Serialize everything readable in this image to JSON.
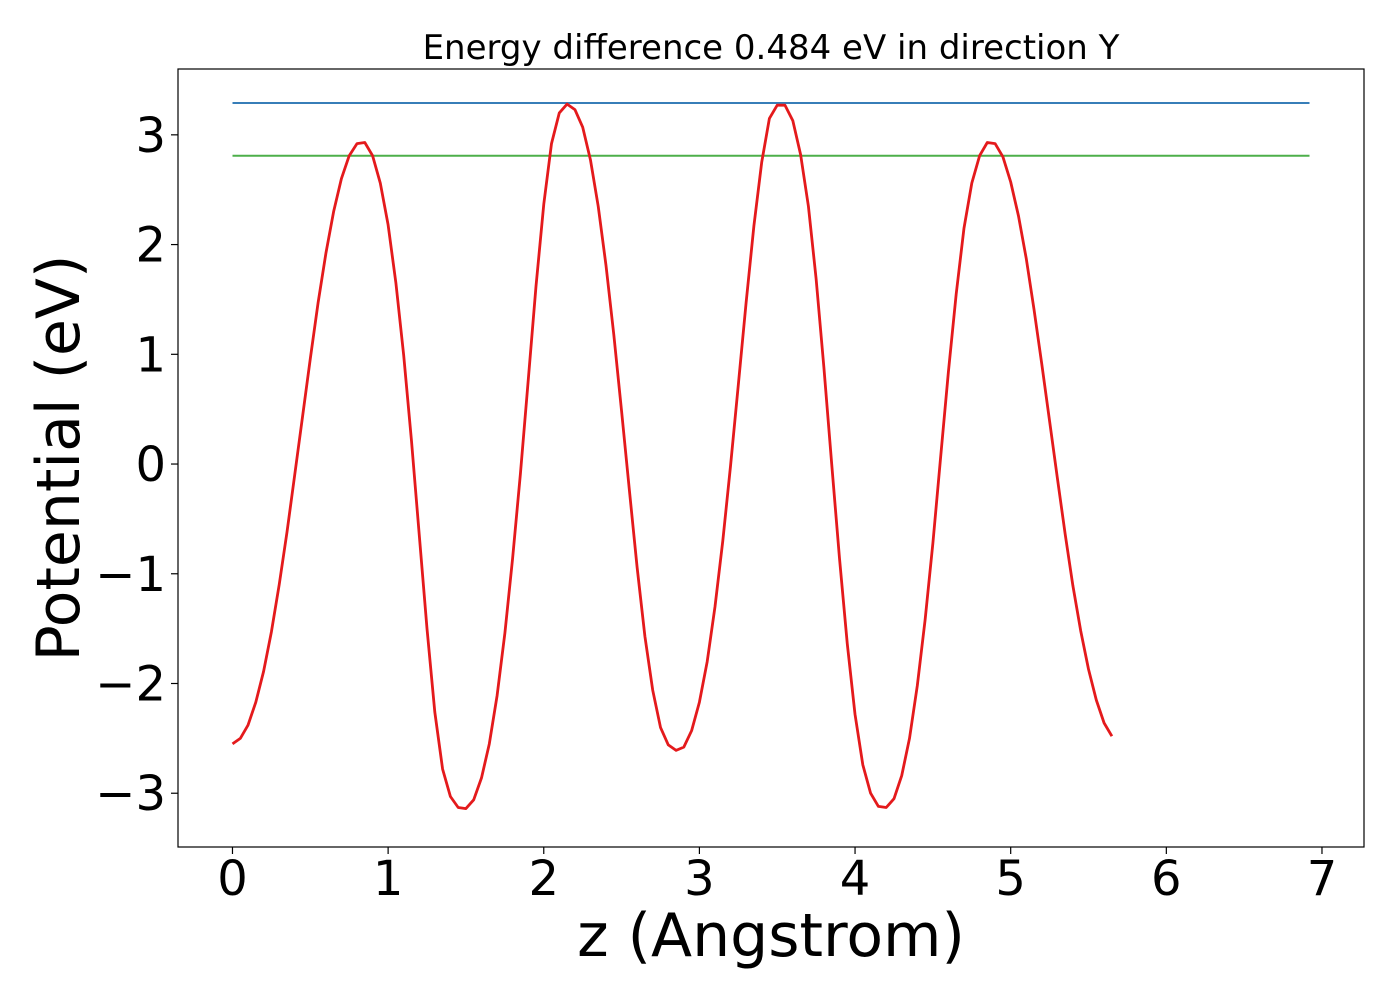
{
  "chart_data": {
    "type": "line",
    "title": "Energy difference 0.484 eV in direction Y",
    "xlabel": "z (Angstrom)",
    "ylabel": "Potential (eV)",
    "xlim": [
      -0.35,
      7.27
    ],
    "ylim": [
      -3.49,
      3.6
    ],
    "grid": false,
    "x_ticks": [
      "0",
      "1",
      "2",
      "3",
      "4",
      "5",
      "6",
      "7"
    ],
    "y_ticks": [
      "−3",
      "−2",
      "−1",
      "0",
      "1",
      "2",
      "3"
    ],
    "potential_curve": {
      "color": "#e41a1c",
      "x_start": 0,
      "x_step": 0.05,
      "y": [
        -2.55,
        -2.5,
        -2.38,
        -2.17,
        -1.89,
        -1.53,
        -1.1,
        -0.62,
        -0.1,
        0.43,
        0.96,
        1.47,
        1.92,
        2.3,
        2.6,
        2.81,
        2.92,
        2.93,
        2.81,
        2.56,
        2.18,
        1.65,
        0.99,
        0.21,
        -0.64,
        -1.5,
        -2.26,
        -2.78,
        -3.03,
        -3.13,
        -3.14,
        -3.06,
        -2.86,
        -2.55,
        -2.11,
        -1.54,
        -0.86,
        -0.09,
        0.76,
        1.62,
        2.37,
        2.92,
        3.2,
        3.28,
        3.23,
        3.07,
        2.77,
        2.35,
        1.81,
        1.18,
        0.48,
        -0.24,
        -0.94,
        -1.57,
        -2.06,
        -2.4,
        -2.56,
        -2.61,
        -2.58,
        -2.43,
        -2.17,
        -1.8,
        -1.3,
        -0.7,
        -0.02,
        0.72,
        1.47,
        2.17,
        2.75,
        3.15,
        3.27,
        3.27,
        3.13,
        2.82,
        2.35,
        1.69,
        0.88,
        0.0,
        -0.86,
        -1.64,
        -2.28,
        -2.74,
        -3.0,
        -3.12,
        -3.13,
        -3.05,
        -2.84,
        -2.5,
        -2.02,
        -1.42,
        -0.72,
        0.07,
        0.84,
        1.55,
        2.15,
        2.56,
        2.81,
        2.93,
        2.92,
        2.8,
        2.57,
        2.26,
        1.87,
        1.41,
        0.91,
        0.39,
        -0.13,
        -0.64,
        -1.11,
        -1.52,
        -1.87,
        -2.15,
        -2.36,
        -2.48
      ]
    },
    "series": [
      {
        "color": "#377eb8",
        "x": [
          0,
          6.92
        ],
        "y": [
          3.29,
          3.29
        ]
      },
      {
        "color": "#4daf4a",
        "x": [
          0,
          6.92
        ],
        "y": [
          2.81,
          2.81
        ]
      }
    ]
  }
}
